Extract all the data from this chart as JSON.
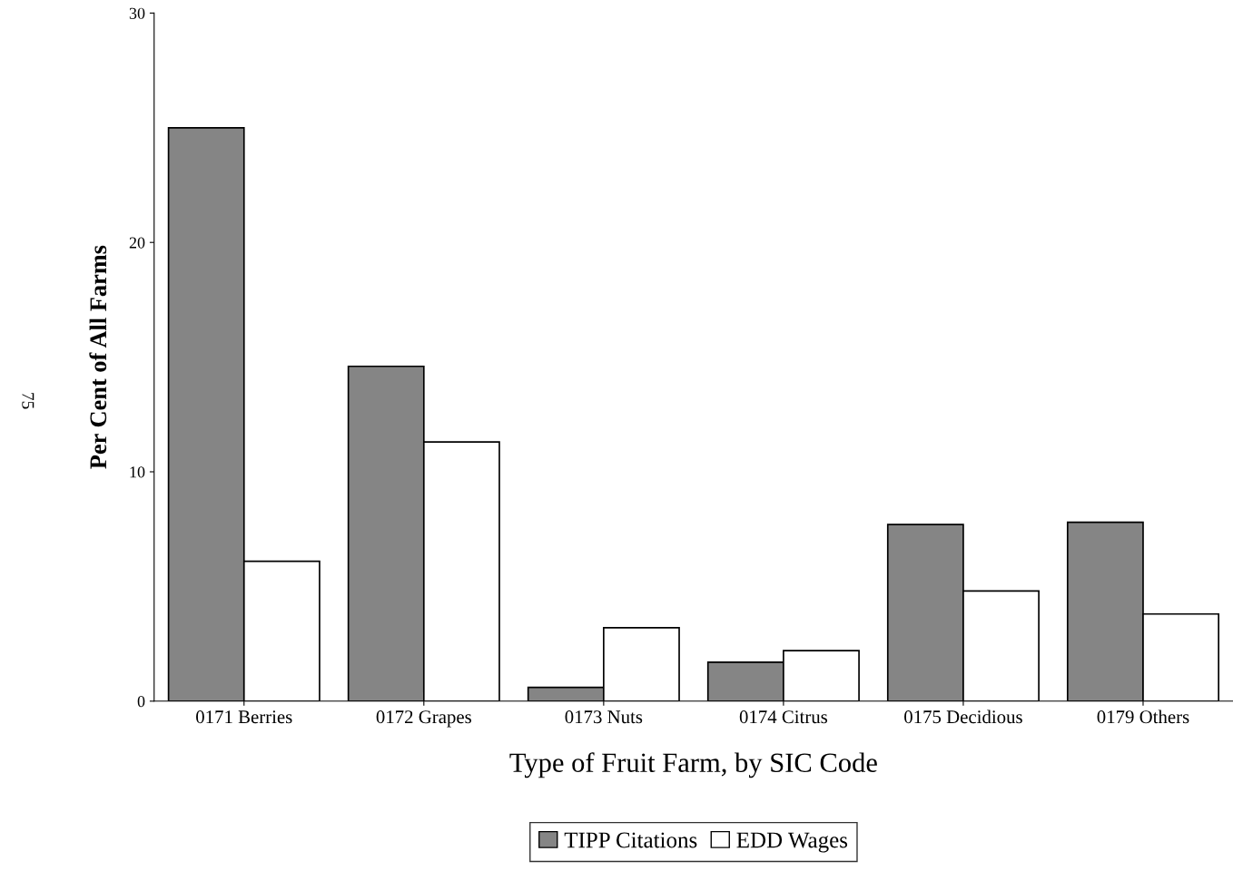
{
  "chart_data": {
    "type": "bar",
    "xlabel": "Type of Fruit Farm, by SIC Code",
    "ylabel": "Per Cent of All Farms",
    "categories": [
      "0171 Berries",
      "0172 Grapes",
      "0173 Nuts",
      "0174 Citrus",
      "0175 Decidious",
      "0179 Others"
    ],
    "series": [
      {
        "name": "TIPP Citations",
        "color": "#858585",
        "values": [
          25.0,
          14.6,
          0.6,
          1.7,
          7.7,
          7.8
        ]
      },
      {
        "name": "EDD Wages",
        "color": "#ffffff",
        "values": [
          6.1,
          11.3,
          3.2,
          2.2,
          4.8,
          3.8
        ]
      }
    ],
    "ylim": [
      0,
      30
    ],
    "yticks": [
      0,
      10,
      20,
      30
    ],
    "grid": false,
    "legend": "bottom",
    "annotations": [
      "75"
    ]
  }
}
